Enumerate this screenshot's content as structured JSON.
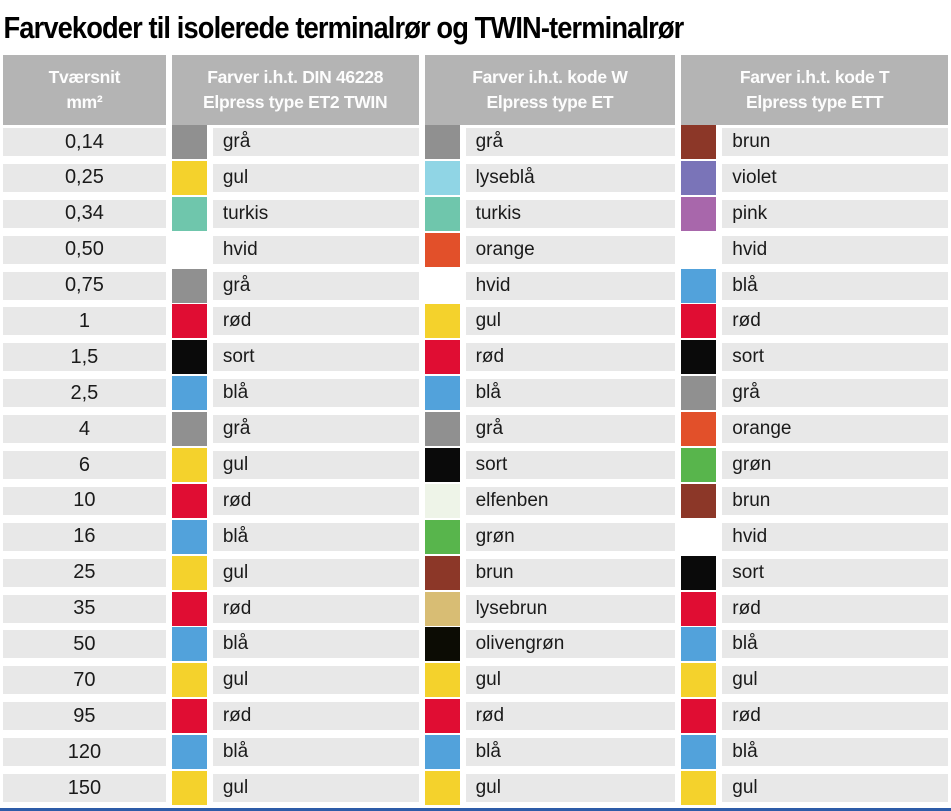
{
  "page": {
    "title": "Farvekoder til isolerede terminalrør og TWIN-terminalrør"
  },
  "table": {
    "headers": [
      {
        "line1": "Tværsnit",
        "line2": "mm²"
      },
      {
        "line1": "Farver i.h.t. DIN 46228",
        "line2": "Elpress type ET2 TWIN"
      },
      {
        "line1": "Farver i.h.t. kode W",
        "line2": "Elpress type ET"
      },
      {
        "line1": "Farver i.h.t. kode T",
        "line2": "Elpress type ETT"
      }
    ],
    "color_map": {
      "grå": "#909090",
      "gul": "#f4d22c",
      "turkis": "#6fc6ac",
      "hvid": "#ffffff",
      "rød": "#e00d33",
      "sort": "#0a0a0a",
      "blå": "#52a2db",
      "lyseblå": "#90d5e5",
      "orange": "#e2502a",
      "grøn": "#58b54c",
      "elfenben": "#eef4e8",
      "brun": "#8c3728",
      "lysebrun": "#d8bd74",
      "olivengrøn": "#0c0c04",
      "violet": "#7a74b8",
      "pink": "#a867ab"
    },
    "rows": [
      {
        "size": "0,14",
        "din": "grå",
        "w": "grå",
        "t": "brun"
      },
      {
        "size": "0,25",
        "din": "gul",
        "w": "lyseblå",
        "t": "violet"
      },
      {
        "size": "0,34",
        "din": "turkis",
        "w": "turkis",
        "t": "pink"
      },
      {
        "size": "0,50",
        "din": "hvid",
        "w": "orange",
        "t": "hvid"
      },
      {
        "size": "0,75",
        "din": "grå",
        "w": "hvid",
        "t": "blå"
      },
      {
        "size": "1",
        "din": "rød",
        "w": "gul",
        "t": "rød"
      },
      {
        "size": "1,5",
        "din": "sort",
        "w": "rød",
        "t": "sort"
      },
      {
        "size": "2,5",
        "din": "blå",
        "w": "blå",
        "t": "grå"
      },
      {
        "size": "4",
        "din": "grå",
        "w": "grå",
        "t": "orange"
      },
      {
        "size": "6",
        "din": "gul",
        "w": "sort",
        "t": "grøn"
      },
      {
        "size": "10",
        "din": "rød",
        "w": "elfenben",
        "t": "brun"
      },
      {
        "size": "16",
        "din": "blå",
        "w": "grøn",
        "t": "hvid"
      },
      {
        "size": "25",
        "din": "gul",
        "w": "brun",
        "t": "sort"
      },
      {
        "size": "35",
        "din": "rød",
        "w": "lysebrun",
        "t": "rød"
      },
      {
        "size": "50",
        "din": "blå",
        "w": "olivengrøn",
        "t": "blå"
      },
      {
        "size": "70",
        "din": "gul",
        "w": "gul",
        "t": "gul"
      },
      {
        "size": "95",
        "din": "rød",
        "w": "rød",
        "t": "rød"
      },
      {
        "size": "120",
        "din": "blå",
        "w": "blå",
        "t": "blå"
      },
      {
        "size": "150",
        "din": "gul",
        "w": "gul",
        "t": "gul"
      }
    ]
  },
  "colors": {
    "header_bg": "#b4b4b4",
    "row_bg": "#e8e8e8",
    "footer_bar": "#2d5ca8"
  }
}
